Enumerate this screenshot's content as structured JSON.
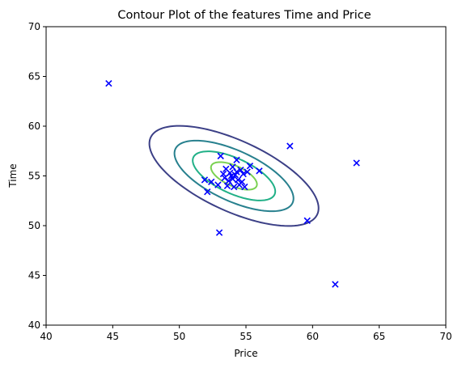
{
  "chart_data": {
    "type": "scatter",
    "title": "Contour Plot of the features Time and Price",
    "xlabel": "Price",
    "ylabel": "Time",
    "xlim": [
      40,
      70
    ],
    "ylim": [
      40,
      70
    ],
    "xticks": [
      40,
      45,
      50,
      55,
      60,
      65,
      70
    ],
    "yticks": [
      40,
      45,
      50,
      55,
      60,
      65,
      70
    ],
    "grid": false,
    "marker": "x",
    "marker_color": "#0000ff",
    "points": [
      [
        44.7,
        64.3
      ],
      [
        53.1,
        57.0
      ],
      [
        54.3,
        56.6
      ],
      [
        58.3,
        58.0
      ],
      [
        63.3,
        56.3
      ],
      [
        53.5,
        55.7
      ],
      [
        54.0,
        55.9
      ],
      [
        54.6,
        55.6
      ],
      [
        55.3,
        56.0
      ],
      [
        56.0,
        55.5
      ],
      [
        53.3,
        55.2
      ],
      [
        53.8,
        55.3
      ],
      [
        54.2,
        55.1
      ],
      [
        54.8,
        55.2
      ],
      [
        55.1,
        55.4
      ],
      [
        51.9,
        54.6
      ],
      [
        52.4,
        54.4
      ],
      [
        52.9,
        54.1
      ],
      [
        53.4,
        54.8
      ],
      [
        53.7,
        54.5
      ],
      [
        54.0,
        54.7
      ],
      [
        54.4,
        54.6
      ],
      [
        54.7,
        54.4
      ],
      [
        53.6,
        54.0
      ],
      [
        54.1,
        53.9
      ],
      [
        54.5,
        54.1
      ],
      [
        54.9,
        53.9
      ],
      [
        52.1,
        53.4
      ],
      [
        53.9,
        55.0
      ],
      [
        54.3,
        55.4
      ],
      [
        53.0,
        49.3
      ],
      [
        59.6,
        50.5
      ],
      [
        61.7,
        44.1
      ]
    ],
    "contours": {
      "center": [
        54.1,
        55.0
      ],
      "levels": [
        {
          "color": "#3b3f86",
          "a": 7.4,
          "b": 3.3,
          "angle_deg": -35
        },
        {
          "color": "#27808e",
          "a": 5.2,
          "b": 2.35,
          "angle_deg": -35
        },
        {
          "color": "#21b087",
          "a": 3.6,
          "b": 1.65,
          "angle_deg": -35
        },
        {
          "color": "#7ad151",
          "a": 2.0,
          "b": 0.95,
          "angle_deg": -35
        }
      ]
    }
  }
}
